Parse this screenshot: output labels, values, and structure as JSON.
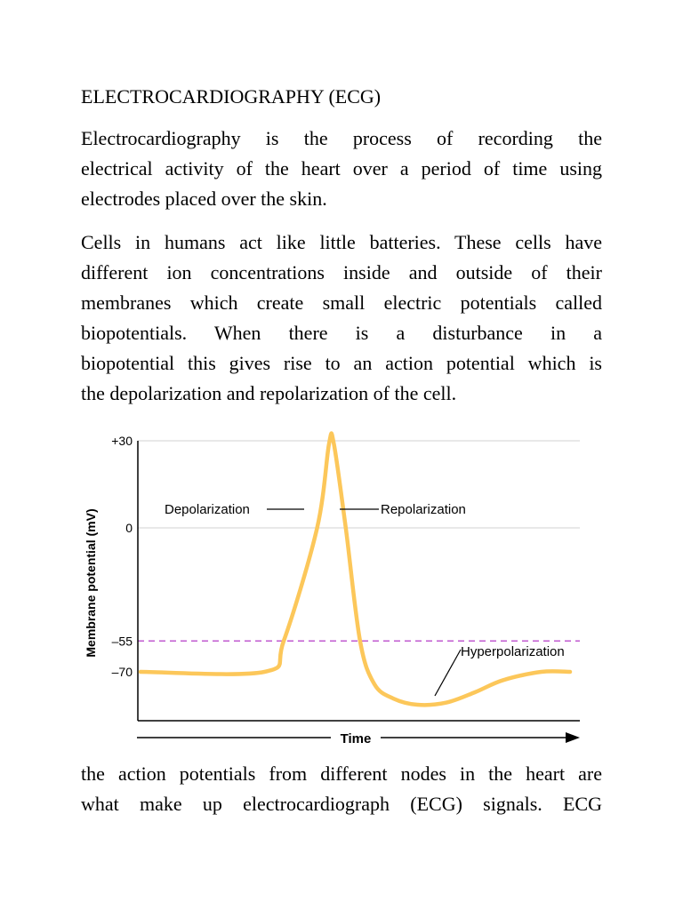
{
  "document": {
    "heading": "ELECTROCARDIOGRAPHY (ECG)",
    "paragraph1": {
      "lines": [
        "Electrocardiography is the process of recording the",
        "electrical activity of the heart over a period of time using",
        "electrodes placed over the skin."
      ]
    },
    "paragraph2": {
      "lines": [
        "Cells in humans act like little batteries. These cells have",
        "different ion concentrations inside and outside of their",
        "membranes which create small electric potentials called",
        "biopotentials. When there is a disturbance in a",
        "biopotential this gives rise to an action potential which is",
        "the depolarization and repolarization of the cell."
      ]
    },
    "paragraph3": {
      "lines": [
        "the action potentials from different nodes in the heart are",
        "what make up electrocardiograph (ECG) signals. ECG"
      ]
    }
  },
  "chart_data": {
    "type": "line",
    "ylabel": "Membrane potential (mV)",
    "xlabel": "Time",
    "y_ticks": [
      "+30",
      "0",
      "–55",
      "–70"
    ],
    "y_tick_values": [
      30,
      0,
      -55,
      -70
    ],
    "threshold_mV": -55,
    "ylim": [
      -90,
      30
    ],
    "annotations": [
      "Depolarization",
      "Repolarization",
      "Hyperpolarization"
    ],
    "colors": {
      "trace": "#fcc75a",
      "threshold": "#c05ad0",
      "gridline": "#d9d9d9",
      "axis": "#000000"
    },
    "series": [
      {
        "x": [
          0,
          26,
          30,
          37,
          39.5,
          40.5,
          43,
          46,
          49,
          53,
          58,
          64,
          70,
          76,
          84,
          90
        ],
        "values": [
          -70,
          -70,
          -55,
          0,
          29,
          29,
          0,
          -55,
          -76,
          -83,
          -86,
          -85,
          -80,
          -74,
          -70,
          -70
        ]
      }
    ]
  }
}
